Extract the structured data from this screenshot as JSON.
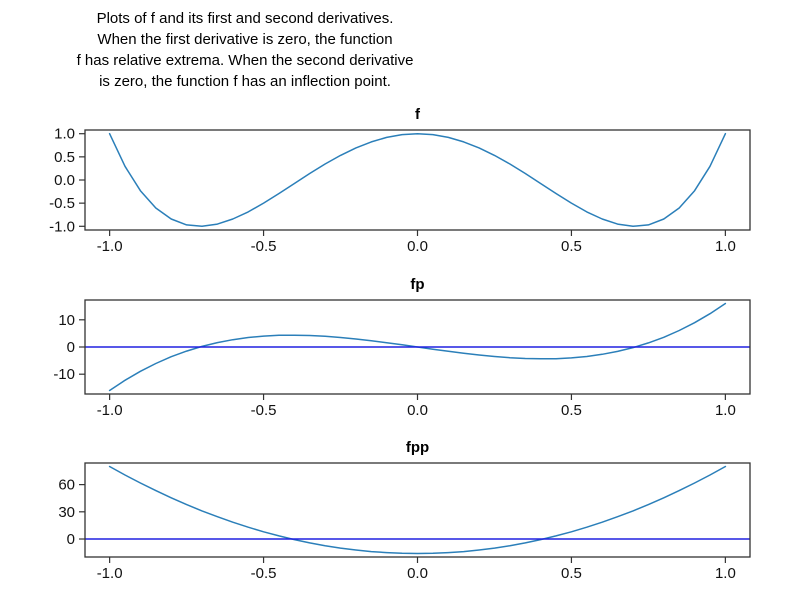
{
  "caption": {
    "lines": [
      "Plots of f and its first and second derivatives.",
      "When the first derivative is zero, the function",
      "f has relative extrema. When the second derivative",
      "is zero, the function f has an inflection point."
    ]
  },
  "colors": {
    "curve": "#2b7fb9",
    "zero_line": "#2020e0",
    "frame": "#333333",
    "tick_text": "#111111"
  },
  "chart_data": [
    {
      "type": "line",
      "title": "f",
      "xlabel": "",
      "ylabel": "",
      "xlim": [
        -1.08,
        1.08
      ],
      "ylim": [
        -1.08,
        1.08
      ],
      "grid": false,
      "zero_line": false,
      "x_tick_values": [
        -1.0,
        -0.5,
        0.0,
        0.5,
        1.0
      ],
      "x_tick_labels": [
        "-1.0",
        "-0.5",
        "0.0",
        "0.5",
        "1.0"
      ],
      "y_tick_values": [
        1.0,
        0.5,
        0.0,
        -0.5,
        -1.0
      ],
      "y_tick_labels": [
        "1.0",
        "0.5",
        "0.0",
        "-0.5",
        "-1.0"
      ],
      "series": [
        {
          "name": "f",
          "x": [
            -1,
            -0.95,
            -0.9,
            -0.85,
            -0.8,
            -0.75,
            -0.7,
            -0.65,
            -0.6,
            -0.55,
            -0.5,
            -0.45,
            -0.4,
            -0.35,
            -0.3,
            -0.25,
            -0.2,
            -0.15,
            -0.1,
            -0.05,
            0,
            0.05,
            0.1,
            0.15,
            0.2,
            0.25,
            0.3,
            0.35,
            0.4,
            0.45,
            0.5,
            0.55,
            0.6,
            0.65,
            0.7,
            0.75,
            0.8,
            0.85,
            0.9,
            0.95,
            1
          ],
          "y": [
            1,
            0.296,
            -0.2312,
            -0.604,
            -0.8432,
            -0.9688,
            -0.9992,
            -0.952,
            -0.8432,
            -0.688,
            -0.5,
            -0.292,
            -0.0752,
            0.14,
            0.3448,
            0.5313,
            0.6928,
            0.824,
            0.9208,
            0.98,
            1,
            0.98,
            0.9208,
            0.824,
            0.6928,
            0.5313,
            0.3448,
            0.14,
            -0.0752,
            -0.292,
            -0.5,
            -0.688,
            -0.8432,
            -0.952,
            -0.9992,
            -0.9688,
            -0.8432,
            -0.604,
            -0.2312,
            0.296,
            1
          ]
        }
      ]
    },
    {
      "type": "line",
      "title": "fp",
      "xlabel": "",
      "ylabel": "",
      "xlim": [
        -1.08,
        1.08
      ],
      "ylim": [
        -17.28,
        17.28
      ],
      "grid": false,
      "zero_line": true,
      "x_tick_values": [
        -1.0,
        -0.5,
        0.0,
        0.5,
        1.0
      ],
      "x_tick_labels": [
        "-1.0",
        "-0.5",
        "0.0",
        "0.5",
        "1.0"
      ],
      "y_tick_values": [
        10,
        0,
        -10
      ],
      "y_tick_labels": [
        "10",
        "0",
        "-10"
      ],
      "series": [
        {
          "name": "fp",
          "x": [
            -1,
            -0.95,
            -0.9,
            -0.85,
            -0.8,
            -0.75,
            -0.7,
            -0.65,
            -0.6,
            -0.55,
            -0.5,
            -0.45,
            -0.4,
            -0.35,
            -0.3,
            -0.25,
            -0.2,
            -0.15,
            -0.1,
            -0.05,
            0,
            0.05,
            0.1,
            0.15,
            0.2,
            0.25,
            0.3,
            0.35,
            0.4,
            0.45,
            0.5,
            0.55,
            0.6,
            0.65,
            0.7,
            0.75,
            0.8,
            0.85,
            0.9,
            0.95,
            1
          ],
          "y": [
            -16,
            -12.236,
            -8.928,
            -6.052,
            -3.584,
            -1.5,
            0.224,
            1.612,
            2.688,
            3.476,
            4,
            4.284,
            4.352,
            4.228,
            3.936,
            3.5,
            2.944,
            2.292,
            1.568,
            0.796,
            0,
            -0.796,
            -1.568,
            -2.292,
            -2.944,
            -3.5,
            -3.936,
            -4.228,
            -4.352,
            -4.284,
            -4,
            -3.476,
            -2.688,
            -1.612,
            -0.224,
            1.5,
            3.584,
            6.052,
            8.928,
            12.236,
            16
          ]
        }
      ]
    },
    {
      "type": "line",
      "title": "fpp",
      "xlabel": "",
      "ylabel": "",
      "xlim": [
        -1.08,
        1.08
      ],
      "ylim": [
        -19.84,
        83.84
      ],
      "grid": false,
      "zero_line": true,
      "x_tick_values": [
        -1.0,
        -0.5,
        0.0,
        0.5,
        1.0
      ],
      "x_tick_labels": [
        "-1.0",
        "-0.5",
        "0.0",
        "0.5",
        "1.0"
      ],
      "y_tick_values": [
        60,
        30,
        0
      ],
      "y_tick_labels": [
        "60",
        "30",
        "0"
      ],
      "series": [
        {
          "name": "fpp",
          "x": [
            -1,
            -0.95,
            -0.9,
            -0.85,
            -0.8,
            -0.75,
            -0.7,
            -0.65,
            -0.6,
            -0.55,
            -0.5,
            -0.45,
            -0.4,
            -0.35,
            -0.3,
            -0.25,
            -0.2,
            -0.15,
            -0.1,
            -0.05,
            0,
            0.05,
            0.1,
            0.15,
            0.2,
            0.25,
            0.3,
            0.35,
            0.4,
            0.45,
            0.5,
            0.55,
            0.6,
            0.65,
            0.7,
            0.75,
            0.8,
            0.85,
            0.9,
            0.95,
            1
          ],
          "y": [
            80,
            70.64,
            61.76,
            53.36,
            45.44,
            38,
            31.04,
            24.56,
            18.56,
            13.04,
            8,
            3.44,
            -0.64,
            -4.24,
            -7.36,
            -10,
            -12.16,
            -13.84,
            -15.04,
            -15.76,
            -16,
            -15.76,
            -15.04,
            -13.84,
            -12.16,
            -10,
            -7.36,
            -4.24,
            -0.64,
            3.44,
            8,
            13.04,
            18.56,
            24.56,
            31.04,
            38,
            45.44,
            53.36,
            61.76,
            70.64,
            80
          ]
        }
      ]
    }
  ]
}
